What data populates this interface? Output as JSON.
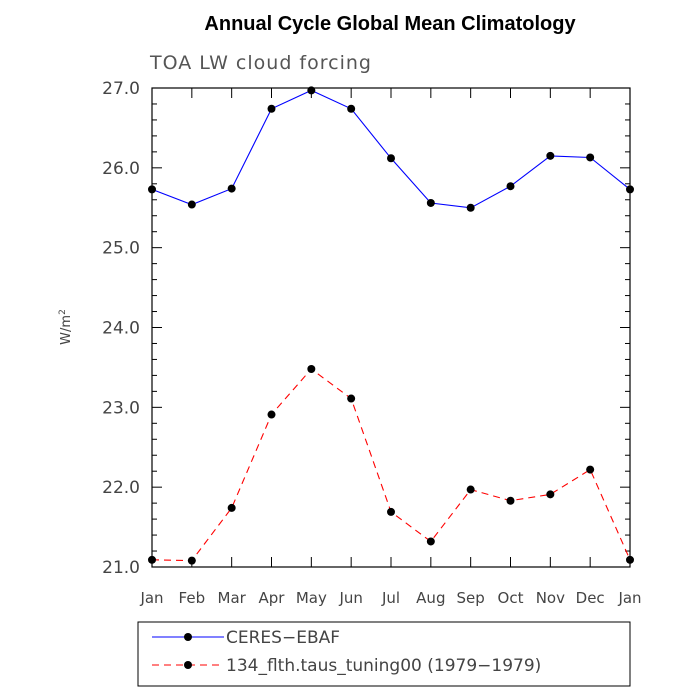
{
  "chart_data": {
    "type": "line",
    "title": "Annual Cycle Global Mean Climatology",
    "subtitle": "TOA LW cloud forcing",
    "ylabel_base": "W/m",
    "ylabel_sup": "2",
    "xlabel": "",
    "categories": [
      "Jan",
      "Feb",
      "Mar",
      "Apr",
      "May",
      "Jun",
      "Jul",
      "Aug",
      "Sep",
      "Oct",
      "Nov",
      "Dec",
      "Jan"
    ],
    "ylim": [
      21.0,
      27.0
    ],
    "yticks": [
      "21.0",
      "22.0",
      "23.0",
      "24.0",
      "25.0",
      "26.0",
      "27.0"
    ],
    "grid": false,
    "legend_position": "bottom",
    "series": [
      {
        "name": "CERES−EBAF",
        "color": "#0000ff",
        "dash": "solid",
        "values": [
          25.73,
          25.54,
          25.74,
          26.74,
          26.97,
          26.74,
          26.12,
          25.56,
          25.5,
          25.77,
          26.15,
          26.13,
          25.73
        ]
      },
      {
        "name": "134_flth.taus_tuning00 (1979−1979)",
        "color": "#ff0000",
        "dash": "dashed",
        "values": [
          21.09,
          21.08,
          21.74,
          22.91,
          23.48,
          23.11,
          21.69,
          21.32,
          21.97,
          21.83,
          21.91,
          22.22,
          21.09
        ]
      }
    ]
  }
}
